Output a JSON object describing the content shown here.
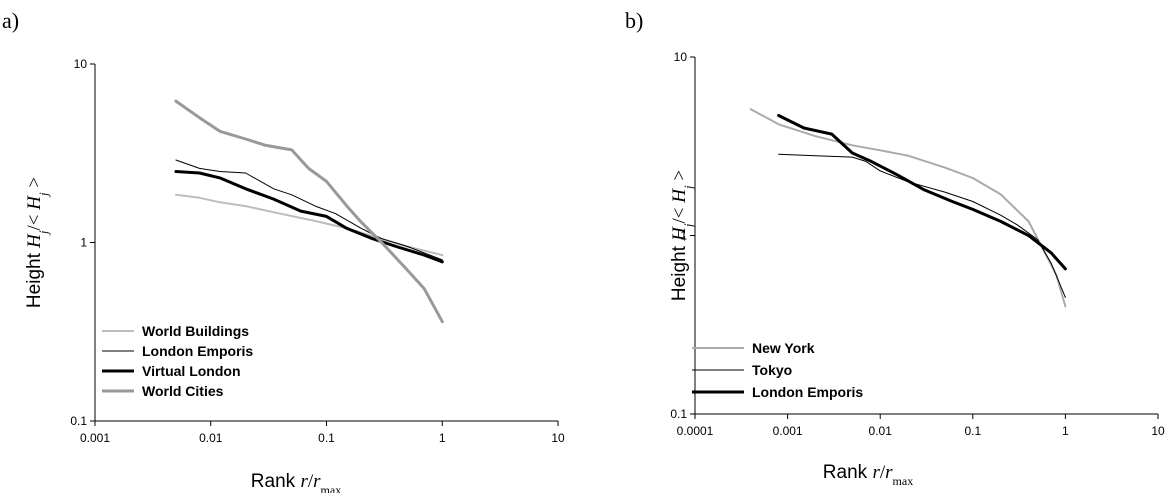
{
  "chart_data": [
    {
      "type": "line",
      "panel_label": "a)",
      "xscale": "log",
      "yscale": "log",
      "xlim": [
        0.001,
        10
      ],
      "ylim": [
        0.1,
        10
      ],
      "xticks": [
        "0.001",
        "0.01",
        "0.1",
        "1",
        "10"
      ],
      "yticks": [
        "0.1",
        "1",
        "10"
      ],
      "ylabel": {
        "prefix": "Height ",
        "var": "H",
        "sub": "j",
        "sep": "/< ",
        "var2": "H",
        "sub2": "j",
        "suffix": " >"
      },
      "xlabel": {
        "prefix": "Rank ",
        "var": "r",
        "sep": "/",
        "var2": "r",
        "sub2": "max"
      },
      "legend_position": "bottom-left",
      "series": [
        {
          "name": "World Buildings",
          "color": "#bdbdbd",
          "width": 2,
          "x": [
            0.005,
            0.008,
            0.012,
            0.02,
            0.04,
            0.08,
            0.15,
            0.3,
            0.5,
            1.0
          ],
          "y": [
            1.85,
            1.78,
            1.68,
            1.6,
            1.45,
            1.32,
            1.2,
            1.05,
            0.95,
            0.85
          ]
        },
        {
          "name": "London Emporis",
          "color": "#000000",
          "width": 1,
          "x": [
            0.005,
            0.008,
            0.012,
            0.02,
            0.035,
            0.05,
            0.08,
            0.12,
            0.2,
            0.3,
            0.5,
            1.0
          ],
          "y": [
            2.9,
            2.6,
            2.5,
            2.45,
            2.0,
            1.85,
            1.6,
            1.45,
            1.2,
            1.05,
            0.95,
            0.8
          ]
        },
        {
          "name": "Virtual London",
          "color": "#000000",
          "width": 3,
          "x": [
            0.005,
            0.008,
            0.012,
            0.02,
            0.035,
            0.06,
            0.1,
            0.15,
            0.25,
            0.4,
            0.7,
            1.0
          ],
          "y": [
            2.5,
            2.45,
            2.3,
            2.0,
            1.75,
            1.5,
            1.4,
            1.2,
            1.05,
            0.95,
            0.85,
            0.78
          ]
        },
        {
          "name": "World Cities",
          "color": "#999999",
          "width": 3,
          "x": [
            0.005,
            0.008,
            0.012,
            0.02,
            0.03,
            0.05,
            0.07,
            0.1,
            0.15,
            0.2,
            0.3,
            0.5,
            0.7,
            1.0
          ],
          "y": [
            6.2,
            5.0,
            4.2,
            3.8,
            3.5,
            3.3,
            2.6,
            2.2,
            1.6,
            1.3,
            1.0,
            0.7,
            0.55,
            0.36
          ]
        }
      ]
    },
    {
      "type": "line",
      "panel_label": "b)",
      "xscale": "log",
      "yscale": "log",
      "xlim": [
        0.0001,
        10
      ],
      "ylim": [
        0.1,
        10
      ],
      "xticks": [
        "0.0001",
        "0.001",
        "0.01",
        "0.1",
        "1",
        "10"
      ],
      "yticks": [
        "0.1",
        "1",
        "10"
      ],
      "ylabel": {
        "prefix": "Height ",
        "var": "H",
        "sub": "j",
        "sep": "/< ",
        "var2": "H",
        "sub2": "j",
        "suffix": " >"
      },
      "xlabel": {
        "prefix": "Rank ",
        "var": "r",
        "sep": "/",
        "var2": "r",
        "sub2": "max"
      },
      "legend_position": "bottom-left",
      "series": [
        {
          "name": "New York",
          "color": "#aaaaaa",
          "width": 2,
          "x": [
            0.0004,
            0.0008,
            0.002,
            0.005,
            0.01,
            0.02,
            0.05,
            0.1,
            0.2,
            0.4,
            0.6,
            0.8,
            1.0
          ],
          "y": [
            5.1,
            4.2,
            3.6,
            3.2,
            3.0,
            2.8,
            2.4,
            2.1,
            1.7,
            1.2,
            0.8,
            0.6,
            0.4
          ]
        },
        {
          "name": "Tokyo",
          "color": "#000000",
          "width": 1,
          "x": [
            0.0008,
            0.002,
            0.005,
            0.007,
            0.01,
            0.02,
            0.05,
            0.1,
            0.2,
            0.3,
            0.5,
            0.7,
            1.0
          ],
          "y": [
            2.85,
            2.8,
            2.75,
            2.6,
            2.3,
            2.0,
            1.75,
            1.55,
            1.3,
            1.15,
            0.95,
            0.7,
            0.45
          ]
        },
        {
          "name": "London Emporis",
          "color": "#000000",
          "width": 3,
          "x": [
            0.0008,
            0.0015,
            0.003,
            0.005,
            0.008,
            0.015,
            0.03,
            0.06,
            0.1,
            0.2,
            0.4,
            0.7,
            1.0
          ],
          "y": [
            4.7,
            4.0,
            3.7,
            2.9,
            2.6,
            2.2,
            1.8,
            1.55,
            1.4,
            1.2,
            1.0,
            0.8,
            0.65
          ]
        }
      ]
    }
  ]
}
